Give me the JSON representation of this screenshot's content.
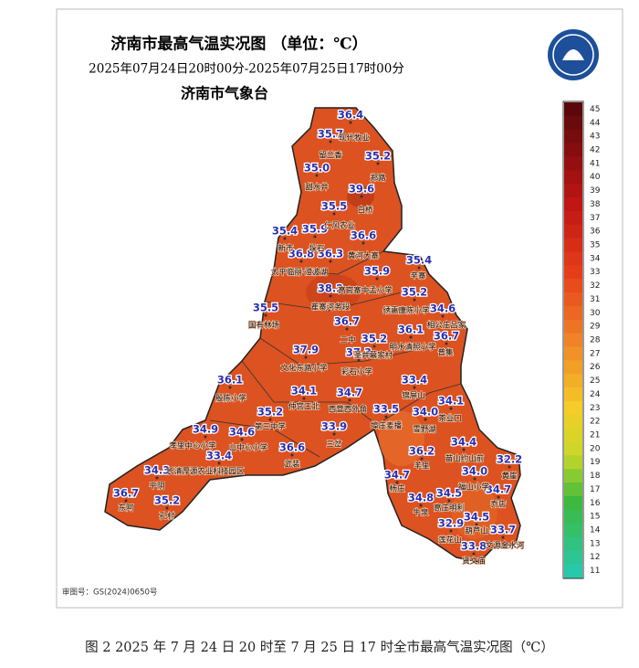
{
  "header": {
    "title": "济南市最高气温实况图 （单位：℃）",
    "subtitle": "2025年07月24日20时00分-2025年07月25日17时00分",
    "agency": "济南市气象台"
  },
  "temperatures": [
    "36.4",
    "35.7",
    "35.2",
    "35.0",
    "39.6",
    "35.5",
    "35.4",
    "35.9",
    "36.6",
    "36.8",
    "36.3",
    "35.4",
    "35.9",
    "38.2",
    "35.2",
    "34.6",
    "35.5",
    "36.7",
    "36.1",
    "36.7",
    "35.2",
    "37.9",
    "37.3",
    "36.1",
    "33.4",
    "34.1",
    "34.7",
    "34.1",
    "35.2",
    "34.0",
    "33.5",
    "33.9",
    "34.9",
    "34.6",
    "34.4",
    "36.6",
    "33.4",
    "36.2",
    "32.2",
    "34.3",
    "34.0",
    "34.7",
    "36.7",
    "35.2",
    "34.8",
    "34.5",
    "34.7",
    "34.5",
    "32.9",
    "33.7",
    "33.8"
  ],
  "places": [
    "现代牧业",
    "留兰香",
    "郑路",
    "甜水井",
    "白桥",
    "仁风农业",
    "新市",
    "垛石",
    "黄河大寨",
    "太平临丽·澄波湖",
    "辛寨",
    "高官寨中孟小学",
    "崔寨河务段",
    "绣惠康陈小学",
    "相公庄吕家",
    "国有林场",
    "二中",
    "明水清照小学",
    "普集",
    "圣井慕家村",
    "文化东路小学",
    "彩石小学",
    "锦屏山",
    "殷陈小学",
    "仲宫王北",
    "西营西外角",
    "茶业口",
    "第三中学",
    "埠庄麦播",
    "雪野湖",
    "三岔",
    "孝里中心小学",
    "山中心小学",
    "苗山约山前",
    "武装",
    "长清厚源农业科技园区",
    "羊里",
    "黄崖",
    "平阴",
    "福山小学",
    "杨庄",
    "乔店",
    "东阿",
    "高庄明利",
    "孔村",
    "牛泉",
    "葫芦山",
    "莲花山",
    "文源金水河",
    "贤文庙"
  ],
  "legend": {
    "ticks": [
      45,
      44,
      43,
      42,
      41,
      40,
      39,
      38,
      37,
      36,
      35,
      34,
      33,
      32,
      31,
      30,
      29,
      28,
      27,
      26,
      25,
      24,
      23,
      22,
      21,
      20,
      19,
      18,
      17,
      16,
      15,
      14,
      13,
      12,
      11
    ]
  },
  "footer": {
    "approval": "审图号：GS(2024)0650号"
  },
  "caption": "图 2  2025 年 7 月 24 日 20 时至 7 月 25 日 17 时全市最高气温实况图（℃）"
}
